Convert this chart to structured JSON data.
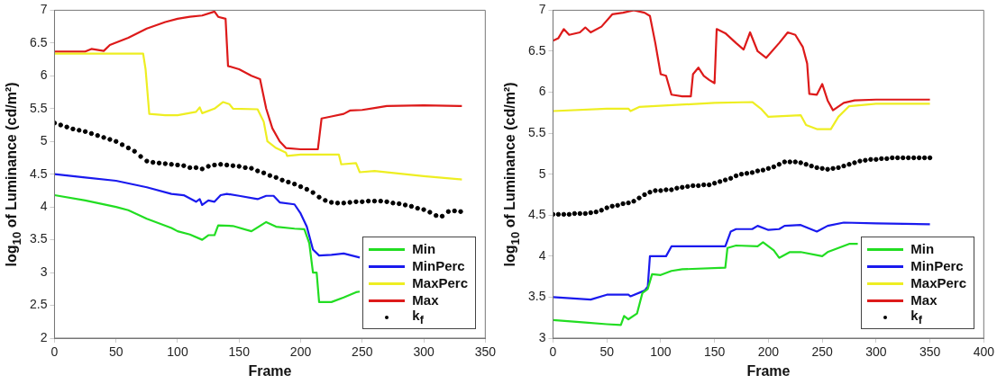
{
  "chart_data": [
    {
      "type": "line",
      "xlabel": "Frame",
      "ylabel": "log$_{10}$ of Luminance (cd/m²)",
      "xlim": [
        0,
        350
      ],
      "xticks": [
        0,
        50,
        100,
        150,
        200,
        250,
        300,
        350
      ],
      "ylim": [
        2,
        7
      ],
      "yticks": [
        2,
        2.5,
        3,
        3.5,
        4,
        4.5,
        5,
        5.5,
        6,
        6.5,
        7
      ],
      "legend": "bottom right",
      "series": [
        {
          "name": "Min",
          "color": "#22dd22",
          "x": [
            0,
            25,
            50,
            60,
            75,
            95,
            100,
            110,
            120,
            125,
            130,
            133,
            145,
            160,
            172,
            180,
            195,
            203,
            207,
            210,
            213,
            215,
            225,
            235,
            245,
            248
          ],
          "values": [
            4.18,
            4.1,
            4.0,
            3.95,
            3.82,
            3.68,
            3.63,
            3.58,
            3.5,
            3.57,
            3.57,
            3.72,
            3.71,
            3.63,
            3.77,
            3.7,
            3.67,
            3.66,
            3.45,
            3.0,
            3.0,
            2.55,
            2.55,
            2.62,
            2.7,
            2.71
          ]
        },
        {
          "name": "MinPerc",
          "color": "#1a1aee",
          "x": [
            0,
            25,
            50,
            75,
            95,
            105,
            115,
            118,
            120,
            125,
            130,
            135,
            140,
            150,
            165,
            172,
            178,
            183,
            195,
            200,
            205,
            210,
            215,
            225,
            235,
            248
          ],
          "values": [
            4.5,
            4.45,
            4.4,
            4.3,
            4.2,
            4.18,
            4.08,
            4.12,
            4.03,
            4.1,
            4.08,
            4.18,
            4.2,
            4.17,
            4.12,
            4.17,
            4.17,
            4.07,
            4.04,
            3.9,
            3.7,
            3.35,
            3.26,
            3.27,
            3.29,
            3.23
          ]
        },
        {
          "name": "MaxPerc",
          "color": "#eeee22",
          "x": [
            0,
            72,
            74,
            77,
            90,
            100,
            115,
            118,
            120,
            130,
            137,
            142,
            145,
            165,
            170,
            173,
            180,
            188,
            189,
            200,
            231,
            233,
            245,
            248,
            260,
            300,
            331
          ],
          "values": [
            6.34,
            6.34,
            6.1,
            5.42,
            5.4,
            5.4,
            5.45,
            5.52,
            5.43,
            5.5,
            5.6,
            5.57,
            5.5,
            5.49,
            5.3,
            5.0,
            4.9,
            4.83,
            4.78,
            4.8,
            4.8,
            4.65,
            4.67,
            4.53,
            4.55,
            4.47,
            4.42
          ]
        },
        {
          "name": "Max",
          "color": "#dd1a1a",
          "x": [
            0,
            25,
            30,
            40,
            45,
            60,
            75,
            90,
            100,
            110,
            120,
            130,
            133,
            139,
            141,
            150,
            160,
            167,
            172,
            177,
            183,
            188,
            200,
            214,
            217,
            225,
            235,
            240,
            250,
            260,
            270,
            300,
            331
          ],
          "values": [
            6.37,
            6.37,
            6.41,
            6.38,
            6.47,
            6.58,
            6.72,
            6.82,
            6.87,
            6.9,
            6.92,
            6.98,
            6.9,
            6.87,
            6.15,
            6.1,
            6.0,
            5.95,
            5.5,
            5.2,
            5.0,
            4.9,
            4.88,
            4.88,
            5.35,
            5.38,
            5.42,
            5.47,
            5.48,
            5.51,
            5.54,
            5.55,
            5.54
          ]
        },
        {
          "name": "k$_{f}$",
          "type": "scatter",
          "marker": "circle",
          "color": "#000000",
          "x": [
            0,
            5,
            10,
            15,
            20,
            25,
            30,
            35,
            40,
            45,
            50,
            55,
            60,
            65,
            70,
            75,
            80,
            85,
            90,
            95,
            100,
            105,
            110,
            115,
            120,
            125,
            130,
            135,
            140,
            145,
            150,
            155,
            160,
            165,
            170,
            175,
            180,
            185,
            190,
            195,
            200,
            205,
            210,
            215,
            220,
            225,
            230,
            235,
            240,
            245,
            250,
            255,
            260,
            265,
            270,
            275,
            280,
            285,
            290,
            295,
            300,
            305,
            310,
            315,
            320,
            325,
            330
          ],
          "values": [
            5.28,
            5.25,
            5.22,
            5.19,
            5.17,
            5.15,
            5.12,
            5.09,
            5.06,
            5.03,
            5.0,
            4.95,
            4.9,
            4.85,
            4.77,
            4.7,
            4.68,
            4.67,
            4.66,
            4.65,
            4.64,
            4.63,
            4.6,
            4.6,
            4.58,
            4.62,
            4.64,
            4.65,
            4.64,
            4.63,
            4.62,
            4.6,
            4.59,
            4.55,
            4.52,
            4.48,
            4.45,
            4.41,
            4.38,
            4.35,
            4.31,
            4.27,
            4.22,
            4.15,
            4.1,
            4.07,
            4.06,
            4.06,
            4.07,
            4.08,
            4.08,
            4.09,
            4.09,
            4.09,
            4.08,
            4.06,
            4.05,
            4.03,
            4.01,
            3.98,
            3.96,
            3.92,
            3.87,
            3.86,
            3.93,
            3.94,
            3.93
          ]
        }
      ]
    },
    {
      "type": "line",
      "xlabel": "Frame",
      "ylabel": "log$_{10}$ of Luminance (cd/m²)",
      "xlim": [
        0,
        400
      ],
      "xticks": [
        0,
        50,
        100,
        150,
        200,
        250,
        300,
        350,
        400
      ],
      "ylim": [
        3,
        7
      ],
      "yticks": [
        3,
        3.5,
        4,
        4.5,
        5,
        5.5,
        6,
        6.5,
        7
      ],
      "legend": "bottom right",
      "series": [
        {
          "name": "Min",
          "color": "#22dd22",
          "x": [
            0,
            30,
            50,
            63,
            66,
            70,
            78,
            83,
            88,
            92,
            100,
            110,
            120,
            160,
            162,
            170,
            190,
            195,
            205,
            210,
            220,
            230,
            250,
            255,
            265,
            275,
            283
          ],
          "values": [
            3.22,
            3.19,
            3.17,
            3.16,
            3.27,
            3.23,
            3.3,
            3.55,
            3.6,
            3.78,
            3.77,
            3.82,
            3.84,
            3.86,
            4.1,
            4.13,
            4.12,
            4.17,
            4.07,
            3.98,
            4.05,
            4.05,
            4.0,
            4.05,
            4.1,
            4.15,
            4.15
          ]
        },
        {
          "name": "MinPerc",
          "color": "#1a1aee",
          "x": [
            0,
            35,
            50,
            70,
            72,
            85,
            88,
            90,
            105,
            110,
            160,
            165,
            170,
            185,
            190,
            200,
            210,
            215,
            230,
            245,
            255,
            270,
            300,
            350
          ],
          "values": [
            3.5,
            3.47,
            3.53,
            3.53,
            3.51,
            3.58,
            3.63,
            4.0,
            4.0,
            4.12,
            4.12,
            4.3,
            4.33,
            4.33,
            4.37,
            4.32,
            4.33,
            4.37,
            4.38,
            4.3,
            4.37,
            4.41,
            4.4,
            4.39
          ]
        },
        {
          "name": "MaxPerc",
          "color": "#eeee22",
          "x": [
            0,
            50,
            70,
            72,
            80,
            150,
            185,
            193,
            200,
            230,
            235,
            245,
            258,
            265,
            275,
            300,
            350
          ],
          "values": [
            5.77,
            5.8,
            5.8,
            5.77,
            5.82,
            5.87,
            5.88,
            5.8,
            5.7,
            5.72,
            5.6,
            5.55,
            5.55,
            5.7,
            5.83,
            5.86,
            5.86
          ]
        },
        {
          "name": "Max",
          "color": "#dd1a1a",
          "x": [
            0,
            5,
            10,
            15,
            25,
            30,
            35,
            45,
            55,
            65,
            75,
            85,
            90,
            95,
            100,
            105,
            110,
            120,
            128,
            130,
            135,
            140,
            145,
            150,
            152,
            160,
            170,
            177,
            183,
            190,
            198,
            210,
            218,
            225,
            232,
            236,
            238,
            245,
            250,
            255,
            260,
            270,
            280,
            300,
            350
          ],
          "values": [
            6.63,
            6.66,
            6.77,
            6.7,
            6.73,
            6.79,
            6.73,
            6.8,
            6.95,
            6.97,
            7.0,
            6.97,
            6.93,
            6.6,
            6.22,
            6.2,
            5.97,
            5.95,
            5.95,
            6.22,
            6.3,
            6.2,
            6.15,
            6.11,
            6.77,
            6.72,
            6.6,
            6.52,
            6.73,
            6.5,
            6.42,
            6.6,
            6.73,
            6.7,
            6.55,
            6.35,
            5.98,
            5.97,
            6.1,
            5.9,
            5.78,
            5.87,
            5.9,
            5.91,
            5.91
          ]
        },
        {
          "name": "k$_{f}$",
          "type": "scatter",
          "marker": "circle",
          "color": "#000000",
          "x": [
            0,
            5,
            10,
            15,
            20,
            25,
            30,
            35,
            40,
            45,
            50,
            55,
            60,
            65,
            70,
            75,
            80,
            85,
            90,
            95,
            100,
            105,
            110,
            115,
            120,
            125,
            130,
            135,
            140,
            145,
            150,
            155,
            160,
            165,
            170,
            175,
            180,
            185,
            190,
            195,
            200,
            205,
            210,
            215,
            220,
            225,
            230,
            235,
            240,
            245,
            250,
            255,
            260,
            265,
            270,
            275,
            280,
            285,
            290,
            295,
            300,
            305,
            310,
            315,
            320,
            325,
            330,
            335,
            340,
            345,
            350
          ],
          "values": [
            4.51,
            4.51,
            4.51,
            4.51,
            4.52,
            4.52,
            4.52,
            4.53,
            4.54,
            4.56,
            4.59,
            4.61,
            4.62,
            4.64,
            4.65,
            4.67,
            4.71,
            4.75,
            4.78,
            4.8,
            4.8,
            4.81,
            4.81,
            4.83,
            4.84,
            4.85,
            4.86,
            4.86,
            4.87,
            4.87,
            4.89,
            4.91,
            4.93,
            4.95,
            4.98,
            5.0,
            5.01,
            5.02,
            5.04,
            5.05,
            5.07,
            5.09,
            5.12,
            5.15,
            5.15,
            5.15,
            5.14,
            5.12,
            5.1,
            5.08,
            5.07,
            5.06,
            5.07,
            5.08,
            5.1,
            5.12,
            5.14,
            5.16,
            5.17,
            5.18,
            5.18,
            5.19,
            5.19,
            5.2,
            5.2,
            5.2,
            5.2,
            5.2,
            5.2,
            5.2,
            5.2
          ]
        }
      ]
    }
  ]
}
